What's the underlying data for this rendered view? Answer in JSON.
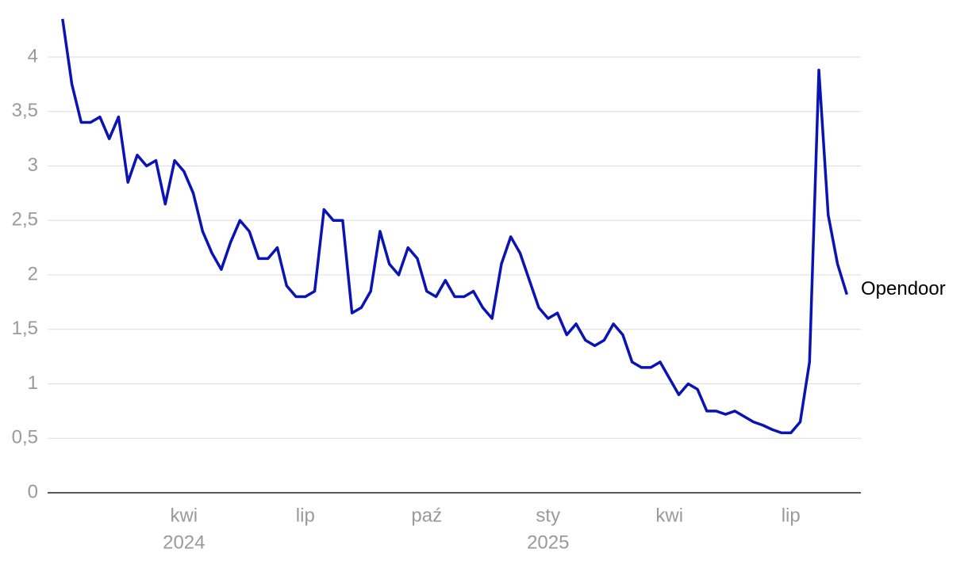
{
  "chart_data": {
    "type": "line",
    "categories": [
      null,
      null,
      null,
      null,
      null,
      null,
      null,
      null,
      null,
      null,
      null,
      null,
      null,
      "kwi",
      null,
      null,
      null,
      null,
      null,
      null,
      null,
      null,
      null,
      null,
      null,
      null,
      "lip",
      null,
      null,
      null,
      null,
      null,
      null,
      null,
      null,
      null,
      null,
      null,
      null,
      "paź",
      null,
      null,
      null,
      null,
      null,
      null,
      null,
      null,
      null,
      null,
      null,
      null,
      "sty",
      null,
      null,
      null,
      null,
      null,
      null,
      null,
      null,
      null,
      null,
      null,
      null,
      "kwi",
      null,
      null,
      null,
      null,
      null,
      null,
      null,
      null,
      null,
      null,
      null,
      null,
      "lip",
      null,
      null,
      null,
      null,
      null,
      null
    ],
    "x_year_labels": [
      {
        "value": 13,
        "label": "2024"
      },
      {
        "value": 52,
        "label": "2025"
      }
    ],
    "series": [
      {
        "name": "Opendoor",
        "color": "#0a14b4",
        "values": [
          4.35,
          3.75,
          3.4,
          3.4,
          3.45,
          3.25,
          3.45,
          2.85,
          3.1,
          3.0,
          3.05,
          2.65,
          3.05,
          2.95,
          2.75,
          2.4,
          2.2,
          2.05,
          2.3,
          2.5,
          2.4,
          2.15,
          2.15,
          2.25,
          1.9,
          1.8,
          1.8,
          1.85,
          2.6,
          2.5,
          2.5,
          1.65,
          1.7,
          1.85,
          2.4,
          2.1,
          2.0,
          2.25,
          2.15,
          1.85,
          1.8,
          1.95,
          1.8,
          1.8,
          1.85,
          1.7,
          1.6,
          2.1,
          2.35,
          2.2,
          1.95,
          1.7,
          1.6,
          1.65,
          1.45,
          1.55,
          1.4,
          1.35,
          1.4,
          1.55,
          1.45,
          1.2,
          1.15,
          1.15,
          1.2,
          1.05,
          0.9,
          1.0,
          0.95,
          0.75,
          0.75,
          0.72,
          0.75,
          0.7,
          0.65,
          0.62,
          0.58,
          0.55,
          0.55,
          0.65,
          1.2,
          3.88,
          2.55,
          2.1,
          1.82
        ]
      }
    ],
    "xlim": [
      -1.6,
      85.5
    ],
    "ylim": [
      0,
      4.4
    ],
    "yticks": [
      0,
      {
        "value": 0.5,
        "label": "0,5"
      },
      1,
      {
        "value": 1.5,
        "label": "1,5"
      },
      2,
      {
        "value": 2.5,
        "label": "2,5"
      },
      3,
      {
        "value": 3.5,
        "label": "3,5"
      },
      4
    ],
    "grid": true
  }
}
